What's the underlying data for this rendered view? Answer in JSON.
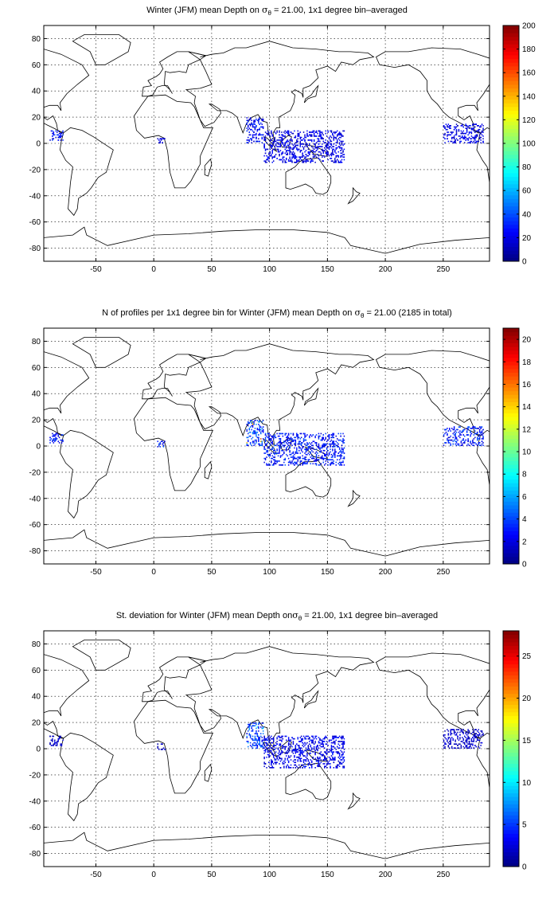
{
  "panels": [
    {
      "title_pre": "Winter (JFM) mean Depth on ",
      "title_sym": "σ",
      "title_sub": "θ",
      "title_post": " = 21.00, 1x1 degree bin–averaged",
      "colorbar_ticks": [
        "0",
        "20",
        "40",
        "60",
        "80",
        "100",
        "120",
        "140",
        "160",
        "180",
        "200"
      ]
    },
    {
      "title_pre": "N of profiles per 1x1 degree bin for Winter (JFM) mean Depth on ",
      "title_sym": "σ",
      "title_sub": "θ",
      "title_post": " = 21.00 (2185 in total)",
      "colorbar_ticks": [
        "0",
        "2",
        "4",
        "6",
        "8",
        "10",
        "12",
        "14",
        "16",
        "18",
        "20"
      ]
    },
    {
      "title_pre": "St. deviation for Winter (JFM) mean Depth on",
      "title_sym": "σ",
      "title_sub": "θ",
      "title_post": " = 21.00, 1x1 degree bin–averaged",
      "colorbar_ticks": [
        "0",
        "5",
        "10",
        "15",
        "20",
        "25"
      ]
    }
  ],
  "chart_data": [
    {
      "type": "heatmap",
      "title": "Winter (JFM) mean Depth on σθ = 21.00, 1x1 degree bin–averaged",
      "xlim": [
        -95,
        290
      ],
      "ylim": [
        -90,
        90
      ],
      "xticks": [
        -50,
        0,
        50,
        100,
        150,
        200,
        250
      ],
      "yticks": [
        -80,
        -60,
        -40,
        -20,
        0,
        20,
        40,
        60,
        80
      ],
      "grid": true,
      "colormap": "jet",
      "clim": [
        0,
        200
      ],
      "colorbar_ticks": [
        0,
        20,
        40,
        60,
        80,
        100,
        120,
        140,
        160,
        180,
        200
      ],
      "clusters": [
        {
          "region": "Bay of Bengal",
          "lon": [
            80,
            95
          ],
          "lat": [
            0,
            20
          ],
          "value": 25
        },
        {
          "region": "Indonesian seas",
          "lon": [
            95,
            165
          ],
          "lat": [
            -15,
            10
          ],
          "value": 20
        },
        {
          "region": "Eastern tropical Pacific",
          "lon": [
            250,
            285
          ],
          "lat": [
            0,
            15
          ],
          "value": 20
        },
        {
          "region": "Gulf of Guinea",
          "lon": [
            3,
            10
          ],
          "lat": [
            -1,
            4
          ],
          "value": 20
        },
        {
          "region": "Colombia Pacific coast",
          "lon": [
            -90,
            -78
          ],
          "lat": [
            2,
            10
          ],
          "value": 25
        }
      ]
    },
    {
      "type": "heatmap",
      "title": "N of profiles per 1x1 degree bin for Winter (JFM) mean Depth on σθ = 21.00 (2185 in total)",
      "xlim": [
        -95,
        290
      ],
      "ylim": [
        -90,
        90
      ],
      "xticks": [
        -50,
        0,
        50,
        100,
        150,
        200,
        250
      ],
      "yticks": [
        -80,
        -60,
        -40,
        -20,
        0,
        20,
        40,
        60,
        80
      ],
      "grid": true,
      "colormap": "jet",
      "clim": [
        0,
        21
      ],
      "colorbar_ticks": [
        0,
        2,
        4,
        6,
        8,
        10,
        12,
        14,
        16,
        18,
        20
      ],
      "total_profiles": 2185,
      "clusters": [
        {
          "region": "Bay of Bengal",
          "lon": [
            80,
            95
          ],
          "lat": [
            0,
            20
          ],
          "value": 4,
          "max": 17
        },
        {
          "region": "Indonesian seas",
          "lon": [
            95,
            165
          ],
          "lat": [
            -15,
            10
          ],
          "value": 3
        },
        {
          "region": "Eastern tropical Pacific",
          "lon": [
            250,
            285
          ],
          "lat": [
            0,
            15
          ],
          "value": 3
        },
        {
          "region": "Gulf of Guinea",
          "lon": [
            3,
            10
          ],
          "lat": [
            -1,
            4
          ],
          "value": 3
        },
        {
          "region": "Colombia Pacific coast",
          "lon": [
            -90,
            -78
          ],
          "lat": [
            2,
            10
          ],
          "value": 3
        }
      ]
    },
    {
      "type": "heatmap",
      "title": "St. deviation for Winter (JFM) mean Depth on σθ = 21.00, 1x1 degree bin–averaged",
      "xlim": [
        -95,
        290
      ],
      "ylim": [
        -90,
        90
      ],
      "xticks": [
        -50,
        0,
        50,
        100,
        150,
        200,
        250
      ],
      "yticks": [
        -80,
        -60,
        -40,
        -20,
        0,
        20,
        40,
        60,
        80
      ],
      "grid": true,
      "colormap": "jet",
      "clim": [
        0,
        28
      ],
      "colorbar_ticks": [
        0,
        5,
        10,
        15,
        20,
        25
      ],
      "clusters": [
        {
          "region": "Bay of Bengal",
          "lon": [
            80,
            95
          ],
          "lat": [
            0,
            20
          ],
          "value": 5,
          "max": 11
        },
        {
          "region": "Indonesian seas",
          "lon": [
            95,
            165
          ],
          "lat": [
            -15,
            10
          ],
          "value": 3
        },
        {
          "region": "Eastern tropical Pacific",
          "lon": [
            250,
            285
          ],
          "lat": [
            0,
            15
          ],
          "value": 2
        },
        {
          "region": "Gulf of Guinea",
          "lon": [
            3,
            10
          ],
          "lat": [
            -1,
            4
          ],
          "value": 2
        },
        {
          "region": "Colombia Pacific coast",
          "lon": [
            -90,
            -78
          ],
          "lat": [
            2,
            10
          ],
          "value": 2
        }
      ]
    }
  ]
}
